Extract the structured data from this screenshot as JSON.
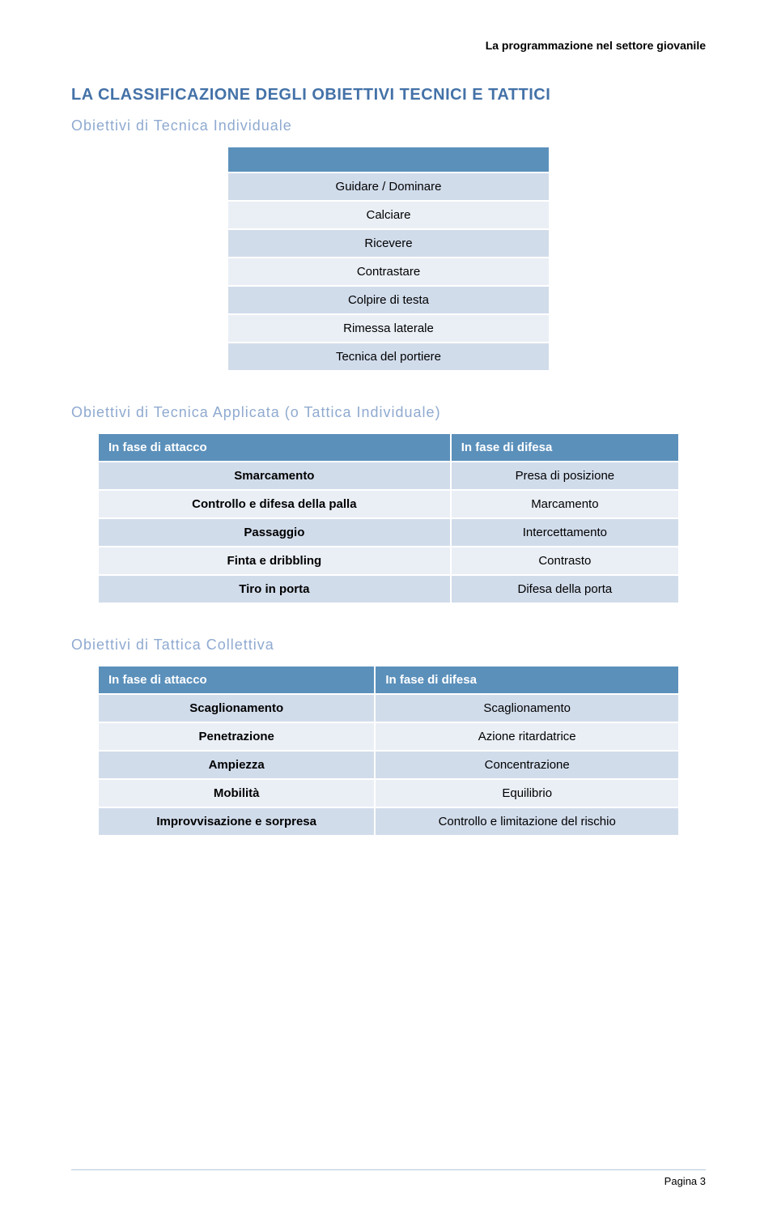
{
  "header": "La programmazione nel settore giovanile",
  "main_heading": "LA CLASSIFICAZIONE DEGLI OBIETTIVI TECNICI E TATTICI",
  "section1": {
    "title": "Obiettivi di Tecnica Individuale",
    "rows": [
      "Guidare / Dominare",
      "Calciare",
      "Ricevere",
      "Contrastare",
      "Colpire di testa",
      "Rimessa laterale",
      "Tecnica del portiere"
    ]
  },
  "section2": {
    "title": "Obiettivi di Tecnica Applicata (o Tattica Individuale)",
    "head_left": "In fase di attacco",
    "head_right": "In fase di difesa",
    "rows": [
      {
        "l": "Smarcamento",
        "r": "Presa di posizione"
      },
      {
        "l": "Controllo e difesa della palla",
        "r": "Marcamento"
      },
      {
        "l": "Passaggio",
        "r": "Intercettamento"
      },
      {
        "l": "Finta e dribbling",
        "r": "Contrasto"
      },
      {
        "l": "Tiro in porta",
        "r": "Difesa della porta"
      }
    ]
  },
  "section3": {
    "title": "Obiettivi di Tattica Collettiva",
    "head_left": "In fase di attacco",
    "head_right": "In fase di difesa",
    "rows": [
      {
        "l": "Scaglionamento",
        "r": "Scaglionamento"
      },
      {
        "l": "Penetrazione",
        "r": "Azione ritardatrice"
      },
      {
        "l": "Ampiezza",
        "r": "Concentrazione"
      },
      {
        "l": "Mobilità",
        "r": "Equilibrio"
      },
      {
        "l": "Improvvisazione e sorpresa",
        "r": "Controllo e limitazione del rischio"
      }
    ]
  },
  "footer": "Pagina 3",
  "colors": {
    "heading_blue": "#4472a8",
    "sub_blue": "#8faad0",
    "table_header": "#5b90bb",
    "row_a": "#d1dceb",
    "row_b": "#eaeff6"
  }
}
